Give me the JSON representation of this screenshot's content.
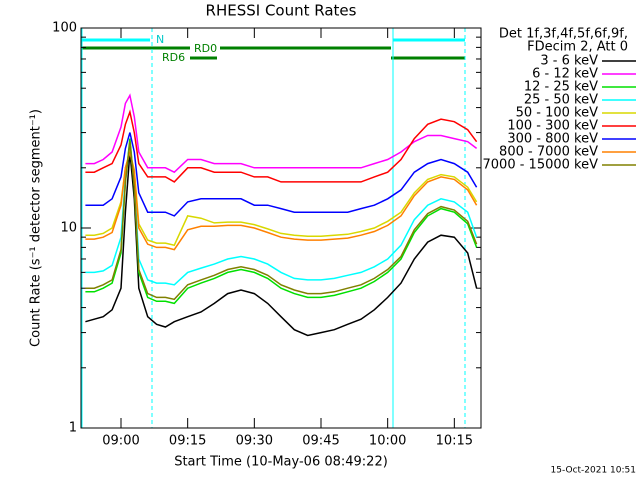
{
  "chart_data": {
    "type": "line",
    "title": "RHESSI Count Rates",
    "xlabel": "Start Time (10-May-06 08:49:22)",
    "ylabel": "Count Rate (s⁻¹ detector segment⁻¹)",
    "legend_header": [
      "Det 1f,3f,4f,5f,6f,9f,",
      "FDecim 2, Att 0"
    ],
    "annotations": [
      "N",
      "RD0",
      "RD6"
    ],
    "footer": "15-Oct-2021 10:51",
    "yscale": "log",
    "ylim": [
      1,
      100
    ],
    "yticks": [
      1,
      10,
      100
    ],
    "yminorticks": [
      2,
      3,
      4,
      5,
      6,
      7,
      8,
      9,
      20,
      30,
      40,
      50,
      60,
      70,
      80,
      90
    ],
    "xlim": [
      531,
      621
    ],
    "xticks": [
      {
        "value": 540,
        "label": "09:00"
      },
      {
        "value": 555,
        "label": "09:15"
      },
      {
        "value": 570,
        "label": "09:30"
      },
      {
        "value": 585,
        "label": "09:45"
      },
      {
        "value": 600,
        "label": "10:00"
      },
      {
        "value": 615,
        "label": "10:15"
      }
    ],
    "x": [
      532,
      534,
      536,
      538,
      540,
      541,
      542,
      543,
      544,
      546,
      548,
      550,
      552,
      555,
      558,
      561,
      564,
      567,
      570,
      573,
      576,
      579,
      582,
      585,
      588,
      591,
      594,
      597,
      600,
      603,
      606,
      609,
      612,
      615,
      618,
      620
    ],
    "series": [
      {
        "name": "3 - 6 keV",
        "color": "#000000",
        "values": [
          3.4,
          3.5,
          3.6,
          3.9,
          5,
          12,
          24,
          14,
          5,
          3.6,
          3.3,
          3.2,
          3.4,
          3.6,
          3.8,
          4.2,
          4.7,
          4.9,
          4.7,
          4.2,
          3.6,
          3.1,
          2.9,
          3.0,
          3.1,
          3.3,
          3.5,
          3.9,
          4.5,
          5.3,
          7.0,
          8.5,
          9.2,
          9.0,
          7.5,
          5.0
        ]
      },
      {
        "name": "6 - 12 keV",
        "color": "#ff00ff",
        "values": [
          21,
          21,
          22,
          24,
          32,
          42,
          46,
          36,
          24,
          20,
          20,
          20,
          19,
          22,
          22,
          21,
          21,
          21,
          20,
          20,
          20,
          20,
          20,
          20,
          20,
          20,
          20,
          21,
          22,
          24,
          27,
          29,
          29,
          28,
          27,
          25
        ]
      },
      {
        "name": "12 - 25 keV",
        "color": "#00e000",
        "values": [
          4.8,
          4.8,
          5,
          5.3,
          7.5,
          17,
          28,
          16,
          6,
          4.5,
          4.3,
          4.3,
          4.2,
          5,
          5.3,
          5.6,
          6,
          6.2,
          6,
          5.6,
          5,
          4.7,
          4.5,
          4.5,
          4.6,
          4.8,
          5,
          5.4,
          6,
          7,
          9.5,
          11.5,
          12.5,
          12,
          10.5,
          8
        ]
      },
      {
        "name": "25 - 50 keV",
        "color": "#00ffff",
        "values": [
          6,
          6,
          6.1,
          6.5,
          9,
          18,
          26,
          17,
          7,
          5.5,
          5.3,
          5.3,
          5.2,
          6,
          6.3,
          6.6,
          7,
          7.2,
          7,
          6.6,
          6,
          5.6,
          5.5,
          5.5,
          5.6,
          5.8,
          6,
          6.4,
          7,
          8.2,
          11,
          13,
          14,
          13.5,
          12,
          9
        ]
      },
      {
        "name": "50 - 100 keV",
        "color": "#d8d800",
        "values": [
          9.2,
          9.2,
          9.4,
          10,
          13.5,
          20,
          24,
          19.5,
          10.5,
          8.7,
          8.4,
          8.4,
          8.2,
          11.5,
          11.2,
          10.6,
          10.7,
          10.7,
          10.4,
          9.9,
          9.4,
          9.2,
          9.1,
          9.1,
          9.2,
          9.3,
          9.6,
          10,
          10.8,
          12,
          15,
          17.5,
          18.5,
          18,
          16,
          13.5
        ]
      },
      {
        "name": "100 - 300 keV",
        "color": "#ff0000",
        "values": [
          19,
          19,
          20,
          21,
          26,
          33,
          38,
          30,
          21,
          18,
          18,
          18,
          17,
          20,
          20,
          19,
          19,
          19,
          18,
          18,
          17,
          17,
          17,
          17,
          17,
          17,
          17,
          18,
          19,
          22,
          28,
          33,
          35,
          34,
          31,
          27
        ]
      },
      {
        "name": "300 - 800 keV",
        "color": "#0000ff",
        "values": [
          13,
          13,
          13,
          14,
          18,
          25,
          30,
          24,
          15,
          12,
          12,
          12,
          11.5,
          13.5,
          14,
          14,
          14,
          14,
          13,
          13,
          12.5,
          12,
          12,
          12,
          12,
          12,
          12.5,
          13,
          14,
          15.5,
          19,
          21,
          22,
          21,
          19,
          16
        ]
      },
      {
        "name": "800 - 7000 keV",
        "color": "#ff8000",
        "values": [
          8.8,
          8.8,
          9,
          9.5,
          13,
          20,
          24,
          19,
          10,
          8.3,
          8,
          8,
          7.8,
          9.8,
          10.2,
          10.2,
          10.3,
          10.3,
          10,
          9.5,
          9,
          8.8,
          8.7,
          8.7,
          8.8,
          8.9,
          9.2,
          9.6,
          10.3,
          11.5,
          14.5,
          17,
          18,
          17.5,
          15.5,
          13
        ]
      },
      {
        "name": "7000 - 15000 keV",
        "color": "#808000",
        "values": [
          5,
          5,
          5.2,
          5.5,
          7.8,
          17,
          27,
          16,
          6.2,
          4.7,
          4.5,
          4.5,
          4.4,
          5.2,
          5.5,
          5.8,
          6.2,
          6.4,
          6.2,
          5.8,
          5.2,
          4.9,
          4.7,
          4.7,
          4.8,
          5,
          5.2,
          5.6,
          6.2,
          7.2,
          9.8,
          11.8,
          12.8,
          12.3,
          10.8,
          8.3
        ]
      }
    ]
  }
}
